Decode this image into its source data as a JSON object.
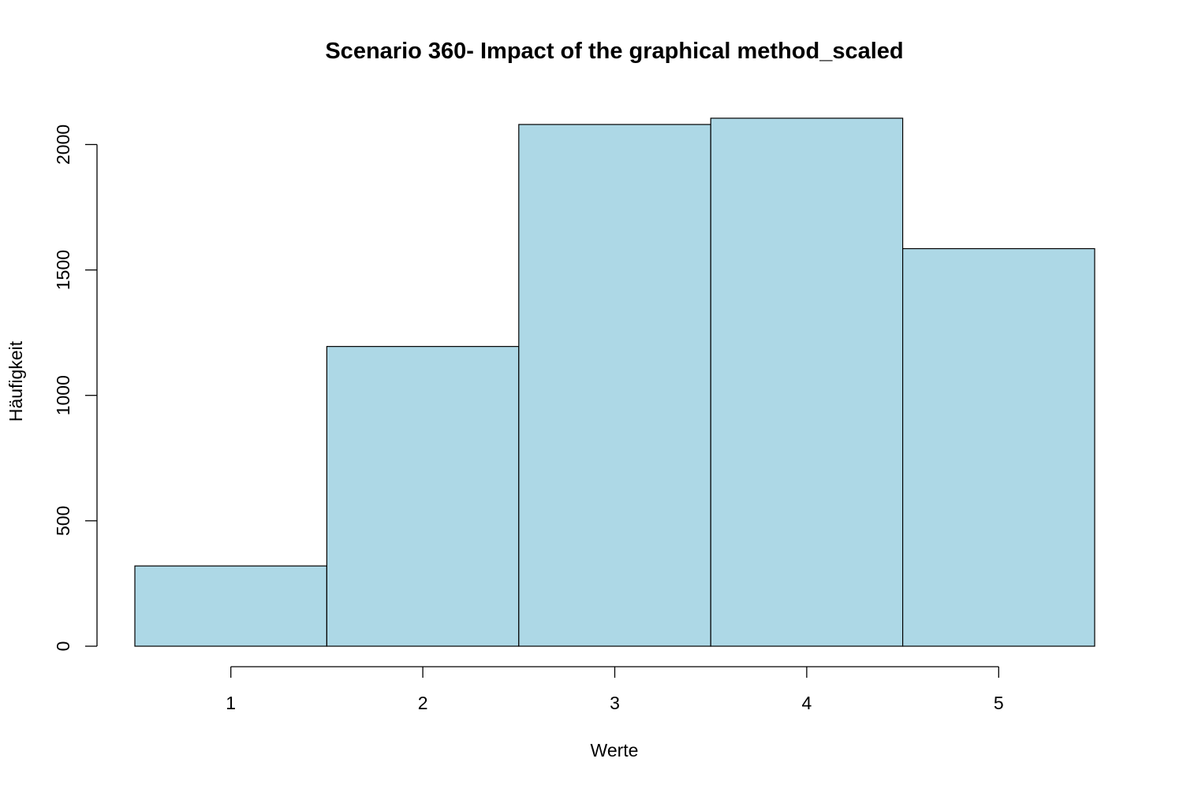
{
  "chart_data": {
    "type": "bar",
    "title": "Scenario 360- Impact of the graphical method_scaled",
    "xlabel": "Werte",
    "ylabel": "Häufigkeit",
    "categories": [
      "1",
      "2",
      "3",
      "4",
      "5"
    ],
    "x": [
      1,
      2,
      3,
      4,
      5
    ],
    "values": [
      320,
      1195,
      2080,
      2105,
      1585
    ],
    "xlim": [
      0.5,
      5.5
    ],
    "ylim": [
      0,
      2105
    ],
    "y_ticks": [
      0,
      500,
      1000,
      1500,
      2000
    ],
    "x_ticks": [
      1,
      2,
      3,
      4,
      5
    ],
    "bar_color": "#add8e6",
    "grid": false,
    "legend": "none"
  }
}
